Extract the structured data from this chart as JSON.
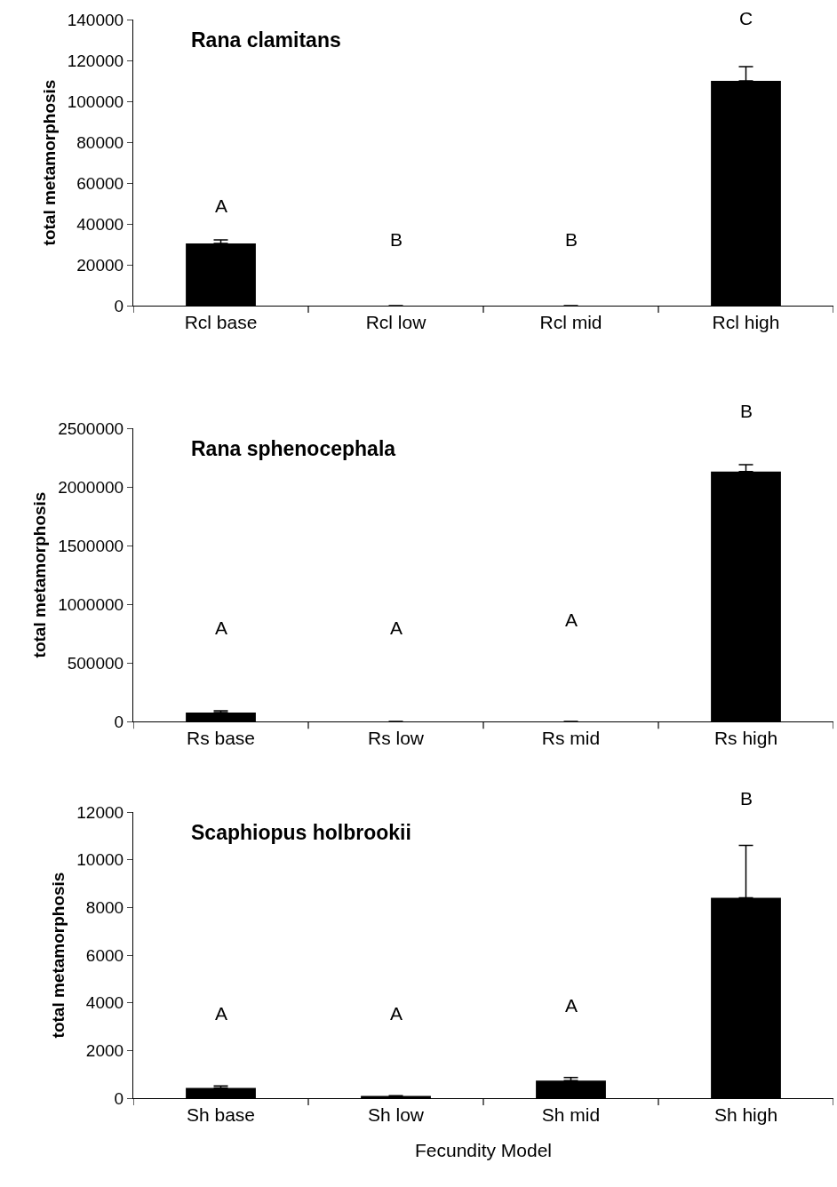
{
  "chart_data": [
    {
      "type": "bar",
      "title": "Rana clamitans",
      "ylabel": "total metamorphosis",
      "categories": [
        "Rcl base",
        "Rcl low",
        "Rcl mid",
        "Rcl high"
      ],
      "values": [
        30400,
        0,
        0,
        110000
      ],
      "errors": [
        [
          30400,
          32200
        ],
        null,
        null,
        [
          110000,
          117000
        ]
      ],
      "color": "#000000",
      "ylim": [
        0,
        140000
      ],
      "yticks": [
        0,
        20000,
        40000,
        60000,
        80000,
        100000,
        120000,
        140000
      ],
      "annotations": [
        "A",
        "B",
        "B",
        "C"
      ]
    },
    {
      "type": "bar",
      "title": "Rana sphenocephala",
      "ylabel": "total metamorphosis",
      "categories": [
        "Rs base",
        "Rs low",
        "Rs mid",
        "Rs high"
      ],
      "values": [
        76000,
        0,
        0,
        2130000
      ],
      "errors": [
        [
          76000,
          91000
        ],
        null,
        null,
        [
          2130000,
          2190000
        ]
      ],
      "color": "#000000",
      "ylim": [
        0,
        2500000
      ],
      "yticks": [
        0,
        500000,
        1000000,
        1500000,
        2000000,
        2500000
      ],
      "annotations": [
        "A",
        "A",
        "A",
        "B"
      ]
    },
    {
      "type": "bar",
      "title": "Scaphiopus holbrookii",
      "xlabel": "Fecundity Model",
      "ylabel": "total metamorphosis",
      "categories": [
        "Sh base",
        "Sh low",
        "Sh mid",
        "Sh high"
      ],
      "values": [
        430,
        90,
        740,
        8400
      ],
      "errors": [
        [
          430,
          510
        ],
        [
          90,
          100
        ],
        [
          740,
          870
        ],
        [
          8400,
          10600
        ]
      ],
      "color": "#000000",
      "ylim": [
        0,
        12000
      ],
      "yticks": [
        0,
        2000,
        4000,
        6000,
        8000,
        10000,
        12000
      ],
      "annotations": [
        "A",
        "A",
        "A",
        "B"
      ]
    }
  ]
}
